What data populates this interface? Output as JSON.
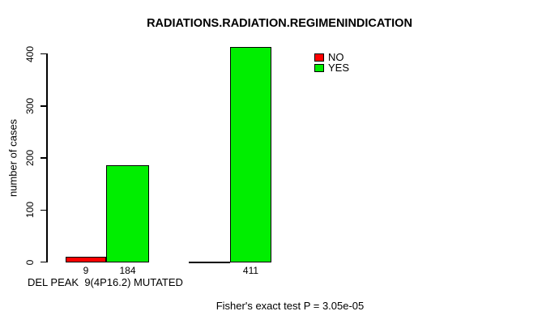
{
  "chart_data": {
    "type": "bar",
    "title": "RADIATIONS.RADIATION.REGIMENINDICATION",
    "ylabel": "number of cases",
    "xlabel": "DEL PEAK  9(4P16.2) MUTATED",
    "footnote": "Fisher's exact test P = 3.05e-05",
    "ylim": [
      0,
      400
    ],
    "yticks": [
      0,
      100,
      200,
      300,
      400
    ],
    "grid": false,
    "legend_position": "top-right",
    "series": [
      {
        "name": "NO",
        "color": "#ff0000",
        "values": [
          9,
          0
        ]
      },
      {
        "name": "YES",
        "color": "#00ee00",
        "values": [
          184,
          411
        ]
      }
    ],
    "shown_value_labels": [
      "9",
      "184",
      "411"
    ]
  }
}
